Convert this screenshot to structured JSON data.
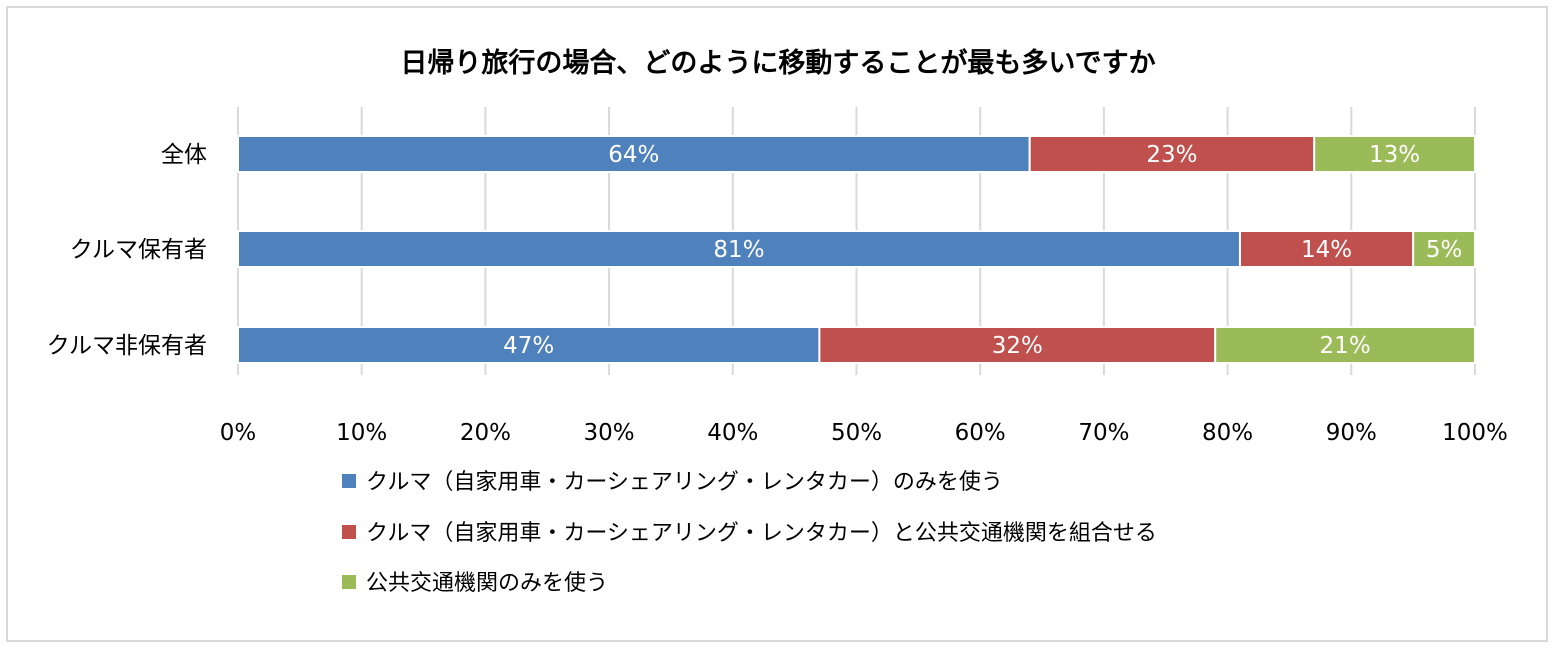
{
  "chart_data": {
    "type": "bar",
    "orientation": "horizontal",
    "stacked": true,
    "title": "日帰り旅行の場合、どのように移動することが最も多いですか",
    "categories": [
      "全体",
      "クルマ保有者",
      "クルマ非保有者"
    ],
    "series": [
      {
        "name": "クルマ（自家用車・カーシェアリング・レンタカー）のみを使う",
        "color": "#4f81bd",
        "values": [
          64,
          81,
          47
        ],
        "labels": [
          "64%",
          "81%",
          "47%"
        ]
      },
      {
        "name": "クルマ（自家用車・カーシェアリング・レンタカー）と公共交通機関を組合せる",
        "color": "#c0504d",
        "values": [
          23,
          14,
          32
        ],
        "labels": [
          "23%",
          "14%",
          "32%"
        ]
      },
      {
        "name": "公共交通機関のみを使う",
        "color": "#9bbb59",
        "values": [
          13,
          5,
          21
        ],
        "labels": [
          "13%",
          "5%",
          "21%"
        ]
      }
    ],
    "xlim": [
      0,
      100
    ],
    "x_ticks": [
      "0%",
      "10%",
      "20%",
      "30%",
      "40%",
      "50%",
      "60%",
      "70%",
      "80%",
      "90%",
      "100%"
    ],
    "grid": true,
    "legend_position": "bottom"
  }
}
